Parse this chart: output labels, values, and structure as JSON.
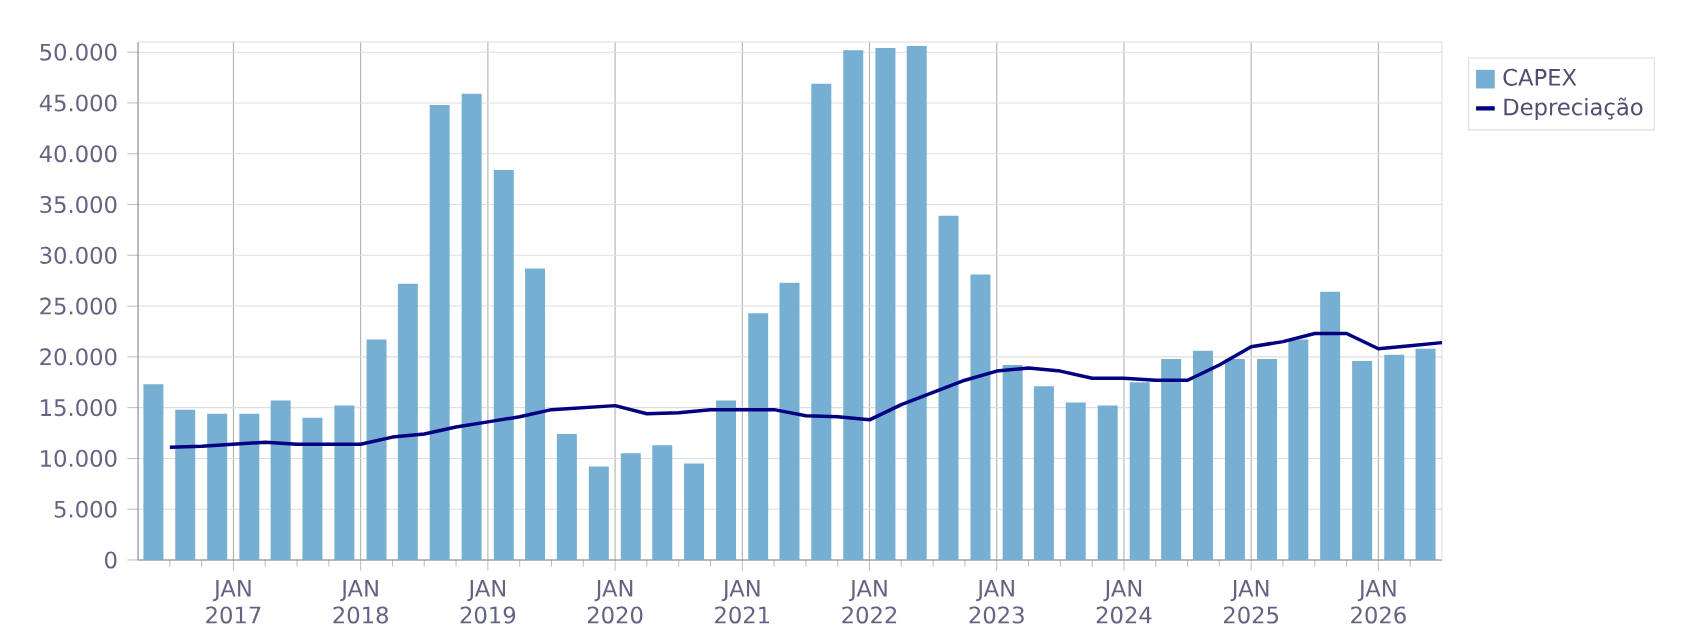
{
  "chart_data": {
    "type": "bar",
    "x": [
      "2016-05-15",
      "2016-08-15",
      "2016-11-15",
      "2017-02-15",
      "2017-05-15",
      "2017-08-15",
      "2017-11-15",
      "2018-02-15",
      "2018-05-15",
      "2018-08-15",
      "2018-11-15",
      "2019-02-15",
      "2019-05-15",
      "2019-08-15",
      "2019-11-15",
      "2020-02-15",
      "2020-05-15",
      "2020-08-15",
      "2020-11-15",
      "2021-02-15",
      "2021-05-15",
      "2021-08-15",
      "2021-11-15",
      "2022-02-15",
      "2022-05-15",
      "2022-08-15",
      "2022-11-15",
      "2023-02-15",
      "2023-05-15",
      "2023-08-15",
      "2023-11-15",
      "2024-02-15",
      "2024-05-15",
      "2024-08-15",
      "2024-11-15",
      "2025-02-15",
      "2025-05-15",
      "2025-08-15",
      "2025-11-15",
      "2026-02-15",
      "2026-05-15"
    ],
    "series": [
      {
        "name": "CAPEX",
        "type": "bar",
        "color": "#77afd3",
        "values": [
          17300,
          14800,
          14400,
          14400,
          15700,
          14000,
          15200,
          21700,
          27200,
          44800,
          45900,
          38400,
          28700,
          12400,
          9200,
          10500,
          11300,
          9500,
          15700,
          24300,
          27300,
          46900,
          50200,
          50400,
          50600,
          33900,
          28100,
          19200,
          17100,
          15500,
          15200,
          17500,
          19800,
          20600,
          19800,
          19800,
          21700,
          26400,
          19600,
          20200,
          20800
        ]
      },
      {
        "name": "Depreciação",
        "type": "line",
        "color": "#000080",
        "x": [
          "2016-07",
          "2016-10",
          "2017-01",
          "2017-04",
          "2017-07",
          "2017-10",
          "2018-01",
          "2018-04",
          "2018-07",
          "2018-10",
          "2019-01",
          "2019-04",
          "2019-07",
          "2019-10",
          "2020-01",
          "2020-04",
          "2020-07",
          "2020-10",
          "2021-01",
          "2021-04",
          "2021-07",
          "2021-10",
          "2022-01",
          "2022-04",
          "2022-07",
          "2022-10",
          "2023-01",
          "2023-04",
          "2023-07",
          "2023-10",
          "2024-01",
          "2024-04",
          "2024-07",
          "2024-10",
          "2025-01",
          "2025-04",
          "2025-07",
          "2025-10",
          "2026-01",
          "2026-04",
          "2026-07"
        ],
        "values": [
          11100,
          11200,
          11400,
          11600,
          11400,
          11400,
          11400,
          12100,
          12400,
          13100,
          13600,
          14100,
          14800,
          15000,
          15200,
          14400,
          14500,
          14800,
          14800,
          14800,
          14200,
          14100,
          13800,
          15300,
          16500,
          17700,
          18600,
          18900,
          18600,
          17900,
          17900,
          17700,
          17700,
          19200,
          21000,
          21500,
          22300,
          22300,
          20800,
          21100,
          21400
        ]
      }
    ],
    "xlim": [
      "2016-04",
      "2026-07"
    ],
    "xticks": [
      {
        "value": "2016-07",
        "label": null
      },
      {
        "value": "2016-10",
        "label": null
      },
      {
        "value": "2017-01",
        "label": "JAN 2017"
      },
      {
        "value": "2017-04",
        "label": null
      },
      {
        "value": "2017-07",
        "label": null
      },
      {
        "value": "2017-10",
        "label": null
      },
      {
        "value": "2018-01",
        "label": "JAN 2018"
      },
      {
        "value": "2018-04",
        "label": null
      },
      {
        "value": "2018-07",
        "label": null
      },
      {
        "value": "2018-10",
        "label": null
      },
      {
        "value": "2019-01",
        "label": "JAN 2019"
      },
      {
        "value": "2019-04",
        "label": null
      },
      {
        "value": "2019-07",
        "label": null
      },
      {
        "value": "2019-10",
        "label": null
      },
      {
        "value": "2020-01",
        "label": "JAN 2020"
      },
      {
        "value": "2020-04",
        "label": null
      },
      {
        "value": "2020-07",
        "label": null
      },
      {
        "value": "2020-10",
        "label": null
      },
      {
        "value": "2021-01",
        "label": "JAN 2021"
      },
      {
        "value": "2021-04",
        "label": null
      },
      {
        "value": "2021-07",
        "label": null
      },
      {
        "value": "2021-10",
        "label": null
      },
      {
        "value": "2022-01",
        "label": "JAN 2022"
      },
      {
        "value": "2022-04",
        "label": null
      },
      {
        "value": "2022-07",
        "label": null
      },
      {
        "value": "2022-10",
        "label": null
      },
      {
        "value": "2023-01",
        "label": "JAN 2023"
      },
      {
        "value": "2023-04",
        "label": null
      },
      {
        "value": "2023-07",
        "label": null
      },
      {
        "value": "2023-10",
        "label": null
      },
      {
        "value": "2024-01",
        "label": "JAN 2024"
      },
      {
        "value": "2024-04",
        "label": null
      },
      {
        "value": "2024-07",
        "label": null
      },
      {
        "value": "2024-10",
        "label": null
      },
      {
        "value": "2025-01",
        "label": "JAN 2025"
      },
      {
        "value": "2025-04",
        "label": null
      },
      {
        "value": "2025-07",
        "label": null
      },
      {
        "value": "2025-10",
        "label": null
      },
      {
        "value": "2026-01",
        "label": "JAN 2026"
      },
      {
        "value": "2026-04",
        "label": null
      }
    ],
    "ylim": [
      0,
      51000
    ],
    "yticks": [
      0,
      {
        "value": 5000,
        "label": "5.000"
      },
      {
        "value": 10000,
        "label": "10.000"
      },
      {
        "value": 15000,
        "label": "15.000"
      },
      {
        "value": 20000,
        "label": "20.000"
      },
      {
        "value": 25000,
        "label": "25.000"
      },
      {
        "value": 30000,
        "label": "30.000"
      },
      {
        "value": 35000,
        "label": "35.000"
      },
      {
        "value": 40000,
        "label": "40.000"
      },
      {
        "value": 45000,
        "label": "45.000"
      },
      {
        "value": 50000,
        "label": "50.000"
      }
    ],
    "grid": true,
    "legend": "top right",
    "marker": "none",
    "line_style": "solid"
  }
}
